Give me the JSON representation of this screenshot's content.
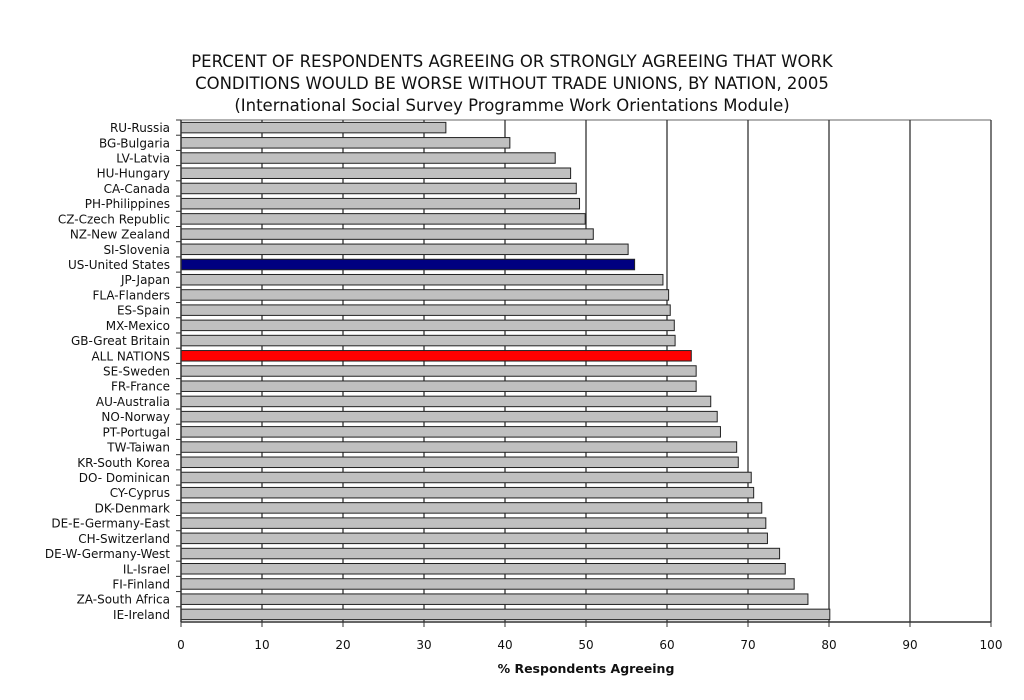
{
  "chart_data": {
    "type": "bar",
    "orientation": "horizontal",
    "title": [
      "PERCENT OF RESPONDENTS AGREEING OR STRONGLY AGREEING THAT WORK",
      "CONDITIONS WOULD BE WORSE WITHOUT TRADE UNIONS, BY NATION, 2005",
      "(International Social Survey Programme Work Orientations Module)"
    ],
    "xlabel": "% Respondents Agreeing",
    "ylabel": "",
    "xlim": [
      0,
      100
    ],
    "xticks": [
      0,
      10,
      20,
      30,
      40,
      50,
      60,
      70,
      80,
      90,
      100
    ],
    "grid": true,
    "categories": [
      "RU-Russia",
      "BG-Bulgaria",
      "LV-Latvia",
      "HU-Hungary",
      "CA-Canada",
      "PH-Philippines",
      "CZ-Czech Republic",
      "NZ-New Zealand",
      "SI-Slovenia",
      "US-United States",
      "JP-Japan",
      "FLA-Flanders",
      "ES-Spain",
      "MX-Mexico",
      "GB-Great Britain",
      "ALL NATIONS",
      "SE-Sweden",
      "FR-France",
      "AU-Australia",
      "NO-Norway",
      "PT-Portugal",
      "TW-Taiwan",
      "KR-South Korea",
      "DO- Dominican",
      "CY-Cyprus",
      "DK-Denmark",
      "DE-E-Germany-East",
      "CH-Switzerland",
      "DE-W-Germany-West",
      "IL-Israel",
      "FI-Finland",
      "ZA-South Africa",
      "IE-Ireland"
    ],
    "values": [
      32.7,
      40.6,
      46.2,
      48.1,
      48.8,
      49.2,
      49.9,
      50.9,
      55.2,
      56.0,
      59.5,
      60.2,
      60.4,
      60.9,
      61.0,
      63.0,
      63.6,
      63.6,
      65.4,
      66.2,
      66.6,
      68.6,
      68.8,
      70.4,
      70.7,
      71.7,
      72.2,
      72.4,
      73.9,
      74.6,
      75.7,
      77.4,
      80.1
    ],
    "colors": {
      "default": "#c0c0c0",
      "US-United States": "#000080",
      "ALL NATIONS": "#ff0000"
    }
  }
}
